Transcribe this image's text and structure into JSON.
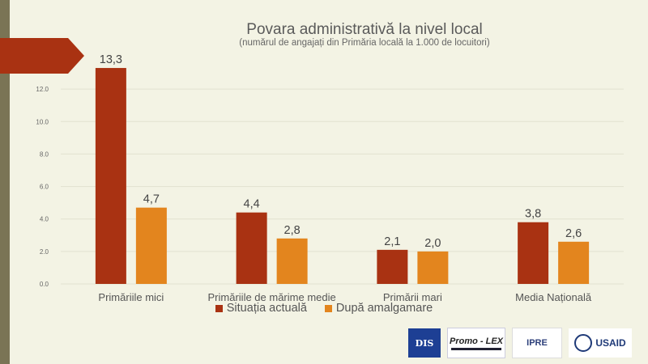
{
  "title": "Povara administrativă la nivel local",
  "subtitle": "(numărul de angajați din Primăria locală la 1.000 de locuitori)",
  "colors": {
    "series1": "#a93212",
    "series2": "#e3851e",
    "accent": "#a93212"
  },
  "chart_data": {
    "type": "bar",
    "categories": [
      "Primăriile mici",
      "Primăriile de mărime medie",
      "Primării mari",
      "Media Națională"
    ],
    "series": [
      {
        "name": "Situația actuală",
        "values": [
          13.3,
          4.4,
          2.1,
          3.8
        ],
        "labels": [
          "13,3",
          "4,4",
          "2,1",
          "3,8"
        ]
      },
      {
        "name": "După amalgamare",
        "values": [
          4.7,
          2.8,
          2.0,
          2.6
        ],
        "labels": [
          "4,7",
          "2,8",
          "2,0",
          "2,6"
        ]
      }
    ],
    "ylim": [
      0,
      14
    ],
    "yticks": [
      0,
      2,
      4,
      6,
      8,
      10,
      12
    ],
    "ytick_labels": [
      "0.0",
      "2.0",
      "4.0",
      "6.0",
      "8.0",
      "10.0",
      "12.0"
    ],
    "grid": true,
    "legend": "bottom"
  },
  "logos": {
    "dis": "DIS",
    "promo_lex": "Promo - LEX",
    "ipre": "IPRE",
    "usaid": "USAID"
  }
}
